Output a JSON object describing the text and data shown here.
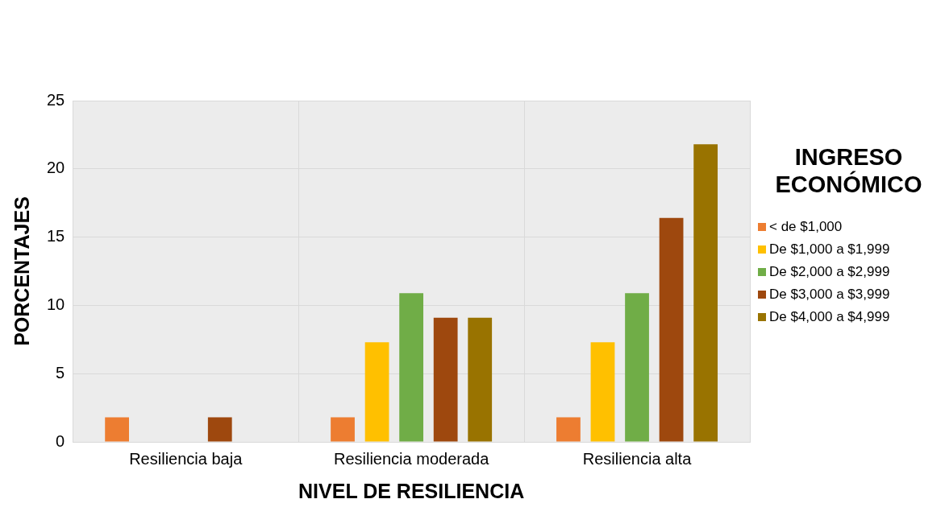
{
  "chart_data": {
    "type": "bar",
    "xlabel": "NIVEL DE RESILIENCIA",
    "ylabel": "PORCENTAJES",
    "legend_title": "INGRESO ECONÓMICO",
    "legend": "right",
    "categories": [
      "Resiliencia baja",
      "Resiliencia moderada",
      "Resiliencia alta"
    ],
    "series": [
      {
        "name": "< de $1,000",
        "color": "#ed7d31",
        "values": [
          1.8,
          1.8,
          1.8
        ]
      },
      {
        "name": "De $1,000 a $1,999",
        "color": "#ffc000",
        "values": [
          0,
          7.3,
          7.3
        ]
      },
      {
        "name": "De $2,000 a $2,999",
        "color": "#70ad47",
        "values": [
          0,
          10.9,
          10.9
        ]
      },
      {
        "name": "De $3,000 a $3,999",
        "color": "#9e480e",
        "values": [
          1.8,
          9.1,
          16.4
        ]
      },
      {
        "name": "De $4,000 a $4,999",
        "color": "#997300",
        "values": [
          0,
          9.1,
          21.8
        ]
      }
    ],
    "ylim": [
      0,
      25
    ],
    "yticks": [
      0,
      5,
      10,
      15,
      20,
      25
    ],
    "grid": true
  }
}
